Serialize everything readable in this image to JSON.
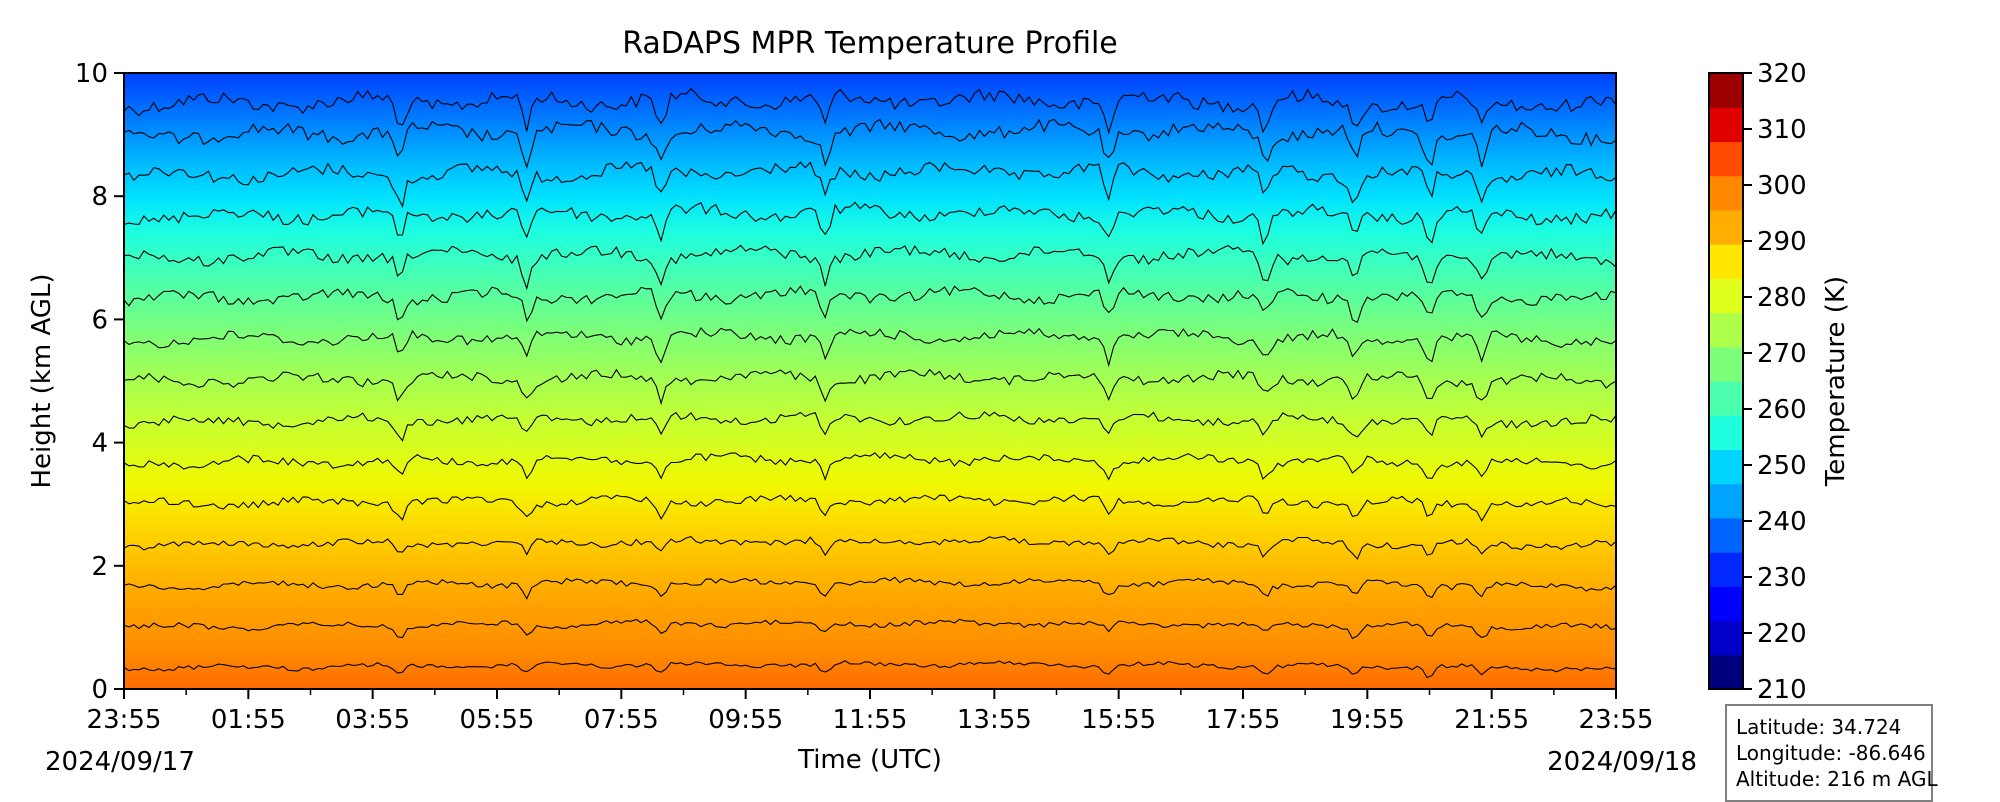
{
  "chart_data": {
    "type": "heatmap",
    "title": "RaDAPS MPR Temperature Profile",
    "xlabel": "Time (UTC)",
    "ylabel": "Height (km AGL)",
    "colorbar_label": "Temperature (K)",
    "x_tick_labels": [
      "23:55",
      "01:55",
      "03:55",
      "05:55",
      "07:55",
      "09:55",
      "11:55",
      "13:55",
      "15:55",
      "17:55",
      "19:55",
      "21:55",
      "23:55"
    ],
    "x_start_date": "2024/09/17",
    "x_end_date": "2024/09/18",
    "y_ticks": [
      0,
      2,
      4,
      6,
      8,
      10
    ],
    "ylim": [
      0,
      10
    ],
    "colorbar_ticks": [
      210,
      220,
      230,
      240,
      250,
      260,
      270,
      280,
      290,
      300,
      310,
      320
    ],
    "clim": [
      210,
      320
    ],
    "colorbar_colors": [
      "#00007f",
      "#0000c8",
      "#0000ff",
      "#0028ff",
      "#0064ff",
      "#00a4ff",
      "#00d4ff",
      "#1fffe0",
      "#49ffad",
      "#7cff7a",
      "#adff49",
      "#e0ff1c",
      "#ffe600",
      "#ffad00",
      "#ff8800",
      "#ff4a00",
      "#e00000",
      "#9d0000"
    ],
    "colormap": "jet",
    "contour_color": "#000000",
    "temperature_profile": {
      "height_km": [
        0,
        1,
        2,
        3,
        4,
        5,
        6,
        7,
        8,
        9,
        10
      ],
      "temperature_K": [
        298,
        292,
        286,
        280,
        274,
        268,
        262,
        256,
        250,
        244,
        236
      ]
    },
    "grid": false
  },
  "station": {
    "latitude": "Latitude: 34.724",
    "longitude": "Longitude: -86.646",
    "altitude": "Altitude: 216 m AGL"
  }
}
